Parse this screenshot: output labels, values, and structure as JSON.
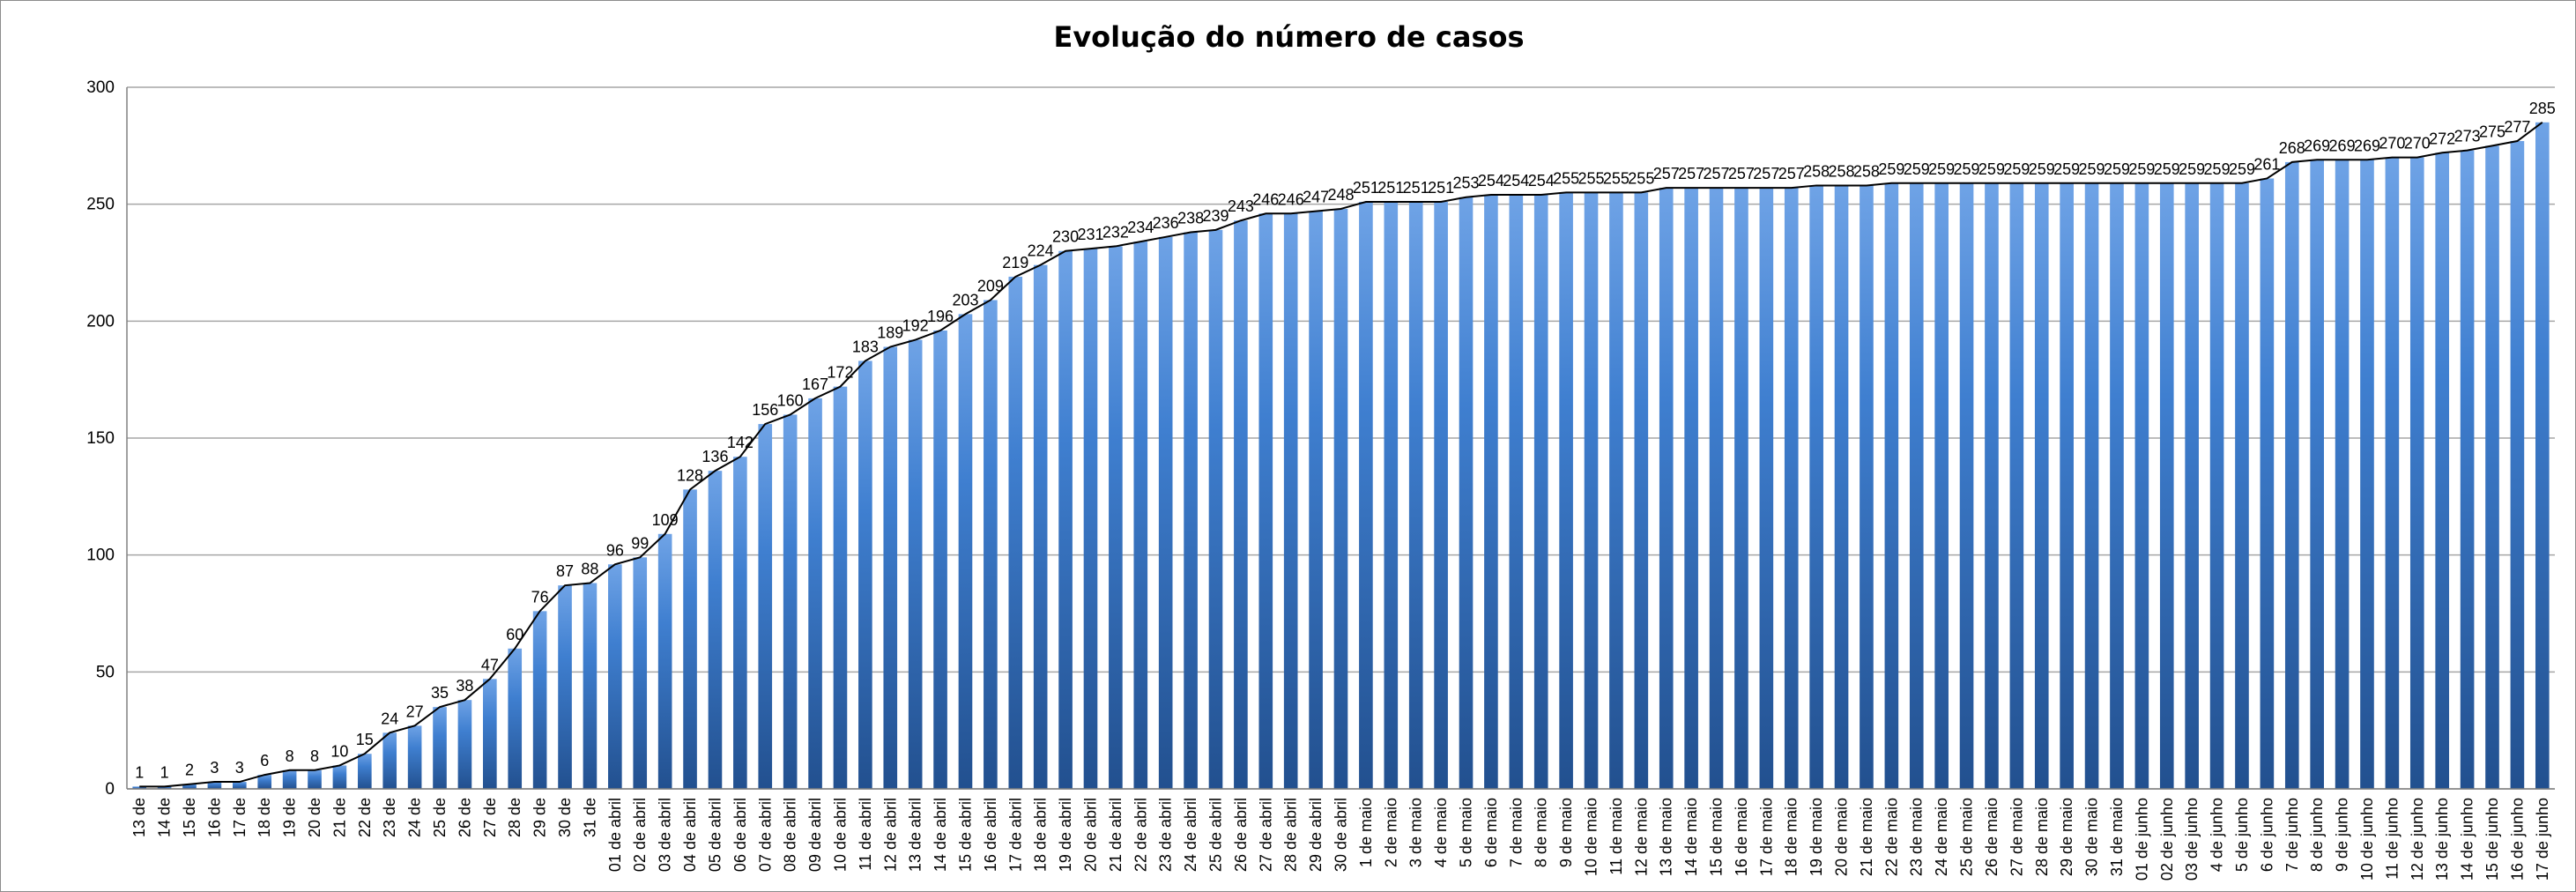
{
  "chart_data": {
    "type": "bar",
    "title": "Evolução do número de casos",
    "xlabel": "",
    "ylabel": "",
    "ylim": [
      0,
      300
    ],
    "yticks": [
      0,
      50,
      100,
      150,
      200,
      250,
      300
    ],
    "grid": true,
    "legend": "none",
    "overlay_line": true,
    "colors": {
      "bar_top": "#6fa3e6",
      "bar_mid": "#3f7fd0",
      "bar_bottom": "#22508f",
      "line": "#000000",
      "grid": "#a6a6a6"
    },
    "categories": [
      "13 de",
      "14 de",
      "15 de",
      "16 de",
      "17 de",
      "18 de",
      "19 de",
      "20 de",
      "21 de",
      "22 de",
      "23 de",
      "24 de",
      "25 de",
      "26 de",
      "27 de",
      "28 de",
      "29 de",
      "30 de",
      "31 de",
      "01 de abril",
      "02 de abril",
      "03 de abril",
      "04 de abril",
      "05 de abril",
      "06 de abril",
      "07 de abril",
      "08 de abril",
      "09 de abril",
      "10 de abril",
      "11 de abril",
      "12 de abril",
      "13 de abril",
      "14 de abril",
      "15 de abril",
      "16 de abril",
      "17 de abril",
      "18 de abril",
      "19 de abril",
      "20 de abril",
      "21 de abril",
      "22 de abril",
      "23 de abril",
      "24 de abril",
      "25 de abril",
      "26 de abril",
      "27 de abril",
      "28 de abril",
      "29 de abril",
      "30 de abril",
      "1 de maio",
      "2 de maio",
      "3 de maio",
      "4 de maio",
      "5 de maio",
      "6 de maio",
      "7 de maio",
      "8 de maio",
      "9 de maio",
      "10 de maio",
      "11 de maio",
      "12 de maio",
      "13 de maio",
      "14 de maio",
      "15 de maio",
      "16 de maio",
      "17 de maio",
      "18 de maio",
      "19 de maio",
      "20 de maio",
      "21 de maio",
      "22 de maio",
      "23 de maio",
      "24 de maio",
      "25 de maio",
      "26 de maio",
      "27 de maio",
      "28 de maio",
      "29 de maio",
      "30 de maio",
      "31 de maio",
      "01 de junho",
      "02 de junho",
      "03 de junho",
      "4 de junho",
      "5 de junho",
      "6 de junho",
      "7 de junho",
      "8 de junho",
      "9 de junho",
      "10 de junho",
      "11 de junho",
      "12 de junho",
      "13 de junho",
      "14 de junho",
      "15 de junho",
      "16 de junho",
      "17 de junho"
    ],
    "values": [
      1,
      1,
      2,
      3,
      3,
      6,
      8,
      8,
      10,
      15,
      24,
      27,
      35,
      38,
      47,
      60,
      76,
      87,
      88,
      96,
      99,
      109,
      128,
      136,
      142,
      156,
      160,
      167,
      172,
      183,
      189,
      192,
      196,
      203,
      209,
      219,
      224,
      230,
      231,
      232,
      234,
      236,
      238,
      239,
      243,
      246,
      246,
      247,
      248,
      251,
      251,
      251,
      251,
      253,
      254,
      254,
      254,
      255,
      255,
      255,
      255,
      257,
      257,
      257,
      257,
      257,
      257,
      258,
      258,
      258,
      259,
      259,
      259,
      259,
      259,
      259,
      259,
      259,
      259,
      259,
      259,
      259,
      259,
      259,
      259,
      261,
      268,
      269,
      269,
      269,
      270,
      270,
      272,
      273,
      275,
      277,
      285
    ]
  }
}
